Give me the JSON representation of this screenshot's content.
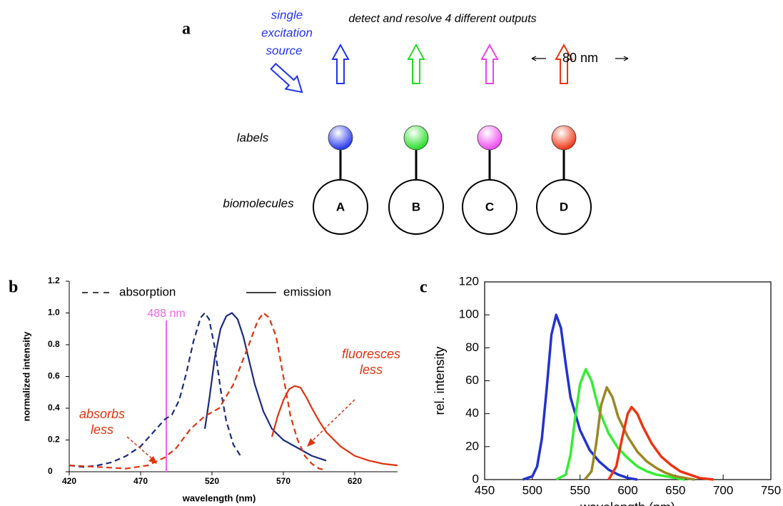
{
  "diagram": {
    "panel": "a",
    "title": "detect and resolve 4 different outputs",
    "source_label": [
      "single",
      "excitation",
      "source"
    ],
    "source_color": "#2233ee",
    "row_labels": [
      "labels",
      "biomolecules"
    ],
    "nodes": [
      {
        "label": "A",
        "color": "#2233ee"
      },
      {
        "label": "B",
        "color": "#22dd22"
      },
      {
        "label": "C",
        "color": "#ee44ee"
      },
      {
        "label": "D",
        "color": "#ee3311"
      }
    ]
  },
  "chart_data": [
    {
      "type": "line",
      "panel": "b",
      "xlabel": "wavelength (nm)",
      "ylabel": "normalized intensity",
      "xlim": [
        420,
        650
      ],
      "ylim": [
        0,
        1.2
      ],
      "xticks": [
        420,
        470,
        520,
        570,
        620
      ],
      "yticks": [
        0,
        0.2,
        0.4,
        0.6,
        0.8,
        {
          "value": 1,
          "label": "1.0"
        },
        1.2
      ],
      "legend": [
        {
          "label": "absorption",
          "dash": true
        },
        {
          "label": "emission",
          "dash": false
        }
      ],
      "vline": {
        "value": 488,
        "label": "488 nm",
        "color": "#ee66ee"
      },
      "annotations": [
        {
          "lines": [
            "absorbs",
            "less"
          ],
          "color": "#dd3311"
        },
        {
          "lines": [
            "fluoresces",
            "less"
          ],
          "color": "#dd3311"
        }
      ],
      "series": [
        {
          "color": "#1c2a80",
          "dash": true,
          "x": [
            420,
            430,
            440,
            450,
            460,
            470,
            480,
            487,
            492,
            497,
            502,
            507,
            512,
            515,
            518,
            522,
            526,
            530,
            535,
            540
          ],
          "values": [
            0.04,
            0.03,
            0.04,
            0.06,
            0.1,
            0.16,
            0.26,
            0.33,
            0.36,
            0.45,
            0.62,
            0.82,
            0.97,
            1.0,
            0.96,
            0.78,
            0.52,
            0.32,
            0.17,
            0.1
          ]
        },
        {
          "color": "#1c2a80",
          "dash": false,
          "x": [
            515,
            518,
            522,
            526,
            530,
            534,
            538,
            542,
            546,
            550,
            556,
            562,
            570,
            580,
            590,
            600
          ],
          "values": [
            0.27,
            0.45,
            0.72,
            0.9,
            0.98,
            1.0,
            0.96,
            0.85,
            0.7,
            0.55,
            0.38,
            0.27,
            0.2,
            0.15,
            0.1,
            0.07
          ]
        },
        {
          "color": "#dd3311",
          "dash": true,
          "x": [
            420,
            440,
            460,
            475,
            487,
            495,
            505,
            515,
            525,
            535,
            545,
            552,
            556,
            560,
            565,
            570,
            575,
            580,
            585,
            590,
            595,
            600
          ],
          "values": [
            0.04,
            0.03,
            0.02,
            0.04,
            0.09,
            0.15,
            0.27,
            0.35,
            0.4,
            0.55,
            0.78,
            0.95,
            1.0,
            0.97,
            0.85,
            0.6,
            0.35,
            0.2,
            0.1,
            0.05,
            0.02,
            0.01
          ]
        },
        {
          "color": "#dd3311",
          "dash": false,
          "x": [
            562,
            566,
            570,
            574,
            578,
            582,
            586,
            590,
            595,
            600,
            610,
            620,
            630,
            640,
            650
          ],
          "values": [
            0.22,
            0.35,
            0.45,
            0.52,
            0.54,
            0.53,
            0.47,
            0.4,
            0.32,
            0.25,
            0.16,
            0.1,
            0.07,
            0.05,
            0.04
          ]
        }
      ]
    },
    {
      "type": "line",
      "panel": "c",
      "xlabel": "wavelength (nm)",
      "ylabel": "rel. intensity",
      "xlim": [
        450,
        750
      ],
      "ylim": [
        0,
        120
      ],
      "xticks": [
        450,
        500,
        550,
        600,
        650,
        700,
        750
      ],
      "yticks": [
        0,
        20,
        40,
        60,
        80,
        100,
        120
      ],
      "annotations": [
        {
          "lines": [
            "80 nm"
          ],
          "color": "#000000"
        }
      ],
      "series": [
        {
          "color": "#2233cc",
          "x": [
            490,
            500,
            505,
            510,
            515,
            520,
            525,
            530,
            535,
            540,
            550,
            560,
            570,
            580,
            590,
            600,
            610
          ],
          "values": [
            0,
            2,
            8,
            25,
            55,
            88,
            100,
            92,
            70,
            50,
            30,
            18,
            11,
            6,
            3,
            1,
            0
          ]
        },
        {
          "color": "#33ee33",
          "x": [
            525,
            535,
            540,
            545,
            550,
            556,
            562,
            570,
            580,
            590,
            600,
            610,
            620,
            630,
            640,
            650,
            660
          ],
          "values": [
            0,
            3,
            15,
            38,
            58,
            67,
            60,
            42,
            28,
            19,
            13,
            8,
            5,
            3,
            2,
            1,
            0
          ]
        },
        {
          "color": "#998822",
          "x": [
            555,
            562,
            567,
            572,
            578,
            584,
            590,
            600,
            610,
            620,
            630,
            640,
            650,
            660,
            670
          ],
          "values": [
            0,
            5,
            22,
            45,
            56,
            50,
            38,
            26,
            17,
            11,
            7,
            4,
            2,
            1,
            0
          ]
        },
        {
          "color": "#ee3311",
          "x": [
            580,
            588,
            594,
            600,
            604,
            610,
            616,
            625,
            635,
            645,
            655,
            665,
            675,
            690
          ],
          "values": [
            0,
            8,
            25,
            40,
            44,
            40,
            32,
            22,
            14,
            9,
            5,
            3,
            1,
            0
          ]
        }
      ]
    }
  ]
}
